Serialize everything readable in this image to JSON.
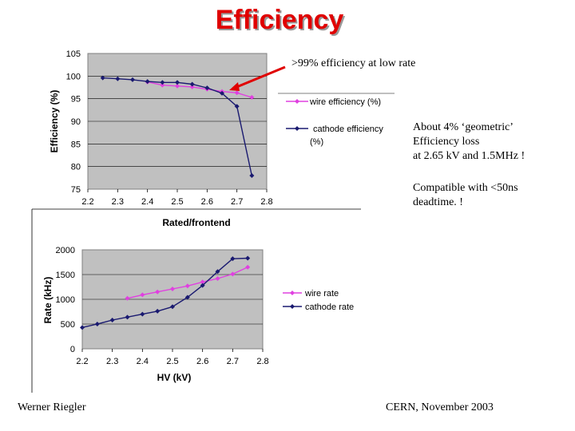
{
  "slide": {
    "title": "Efficiency",
    "notes": [
      "About 4% ‘geometric’",
      "Efficiency loss",
      "at 2.65 kV and 1.5MHz !",
      "Compatible with <50ns",
      "deadtime. !"
    ],
    "annotation": ">99% efficiency at low rate",
    "footer_left": "Werner Riegler",
    "footer_right": "CERN, November 2003"
  },
  "colors": {
    "wire": "#e040e0",
    "cathode": "#1a1a70",
    "plot_bg": "#c0c0c0",
    "arrow": "#e00000"
  },
  "chart_data": [
    {
      "type": "line",
      "title": "",
      "xlabel": "Rated/frontend",
      "ylabel": "Efficiency (%)",
      "xlim": [
        2.2,
        2.8
      ],
      "ylim": [
        75,
        105
      ],
      "xticks": [
        "2.2",
        "2.3",
        "2.4",
        "2.5",
        "2.6",
        "2.7",
        "2.8"
      ],
      "yticks": [
        "75",
        "80",
        "85",
        "90",
        "95",
        "100",
        "105"
      ],
      "grid": true,
      "legend_position": "right",
      "series": [
        {
          "name": "wire efficiency (%)",
          "color": "#e040e0",
          "marker": "diamond",
          "x": [
            2.4,
            2.45,
            2.5,
            2.55,
            2.6,
            2.65,
            2.7,
            2.75
          ],
          "y": [
            98.7,
            98.0,
            97.8,
            97.6,
            97.1,
            96.6,
            96.3,
            95.3
          ]
        },
        {
          "name": "cathode efficiency (%)",
          "color": "#1a1a70",
          "marker": "diamond",
          "x": [
            2.25,
            2.3,
            2.35,
            2.4,
            2.45,
            2.5,
            2.55,
            2.6,
            2.65,
            2.7,
            2.75
          ],
          "y": [
            99.6,
            99.4,
            99.2,
            98.8,
            98.6,
            98.6,
            98.2,
            97.4,
            96.2,
            93.3,
            78.0
          ]
        }
      ]
    },
    {
      "type": "line",
      "title": "",
      "xlabel": "HV (kV)",
      "ylabel": "Rate (kHz)",
      "xlim": [
        2.2,
        2.8
      ],
      "ylim": [
        0,
        2000
      ],
      "xticks": [
        "2.2",
        "2.3",
        "2.4",
        "2.5",
        "2.6",
        "2.7",
        "2.8"
      ],
      "yticks": [
        "0",
        "500",
        "1000",
        "1500",
        "2000"
      ],
      "grid": true,
      "legend_position": "right",
      "series": [
        {
          "name": "wire rate",
          "color": "#e040e0",
          "marker": "diamond",
          "x": [
            2.35,
            2.4,
            2.45,
            2.5,
            2.55,
            2.6,
            2.65,
            2.7,
            2.75
          ],
          "y": [
            1020,
            1090,
            1150,
            1210,
            1270,
            1350,
            1420,
            1510,
            1650
          ]
        },
        {
          "name": "cathode rate",
          "color": "#1a1a70",
          "marker": "diamond",
          "x": [
            2.2,
            2.25,
            2.3,
            2.35,
            2.4,
            2.45,
            2.5,
            2.55,
            2.6,
            2.65,
            2.7,
            2.75
          ],
          "y": [
            430,
            500,
            580,
            640,
            700,
            760,
            850,
            1040,
            1280,
            1560,
            1820,
            1830
          ]
        }
      ]
    }
  ]
}
